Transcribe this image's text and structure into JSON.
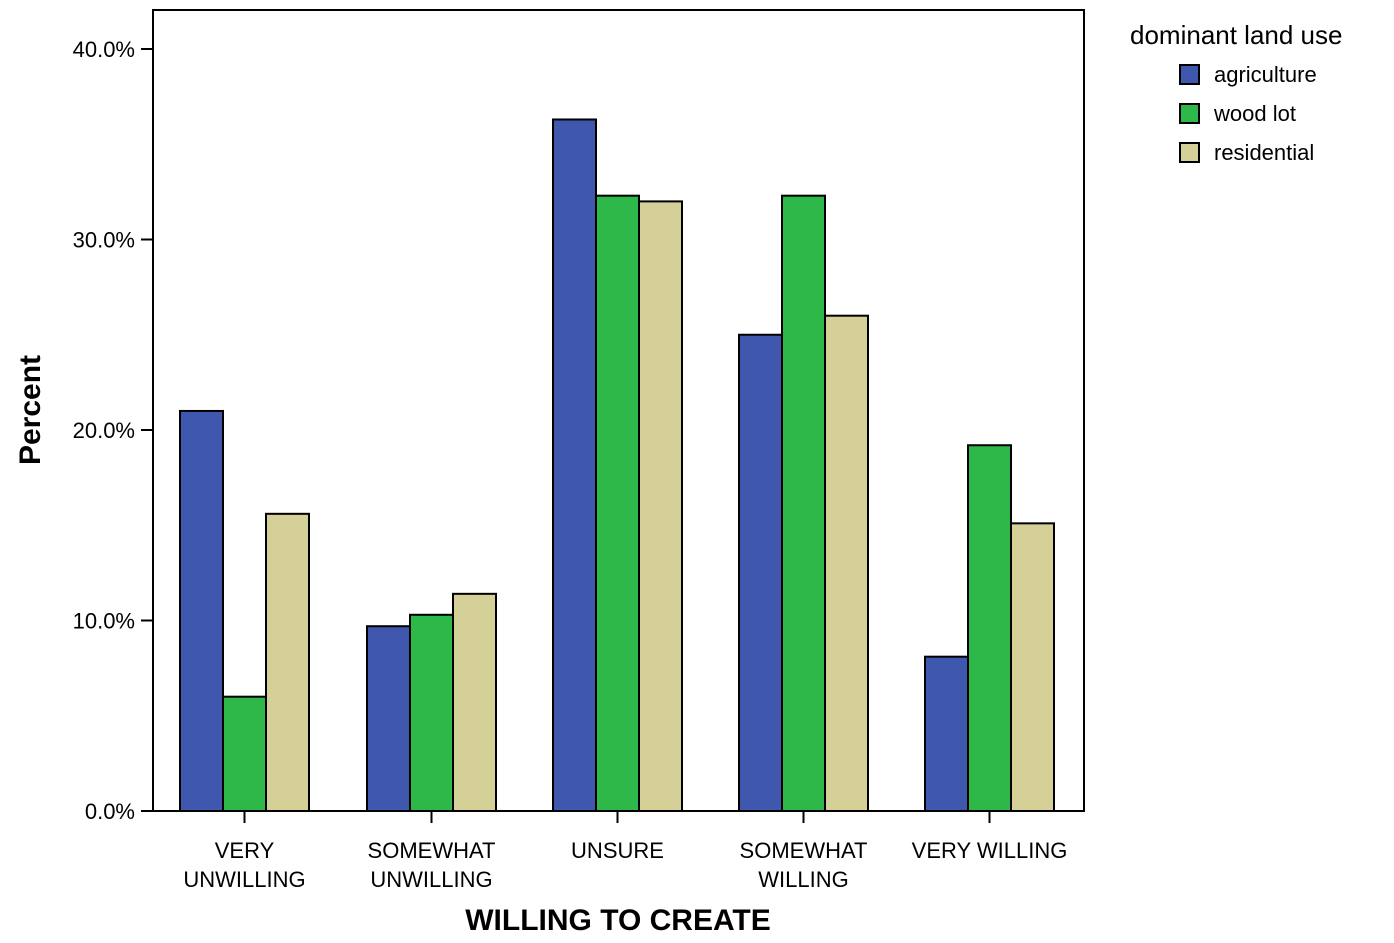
{
  "chart_data": {
    "type": "bar",
    "xlabel": "WILLING TO CREATE",
    "ylabel": "Percent",
    "ylim": [
      0,
      40
    ],
    "yticks": [
      "0.0%",
      "10.0%",
      "20.0%",
      "30.0%",
      "40.0%"
    ],
    "ytick_values": [
      0,
      10,
      20,
      30,
      40
    ],
    "categories": [
      [
        "VERY",
        "UNWILLING"
      ],
      [
        "SOMEWHAT",
        "UNWILLING"
      ],
      [
        "UNSURE"
      ],
      [
        "SOMEWHAT",
        "WILLING"
      ],
      [
        "VERY WILLING"
      ]
    ],
    "legend": {
      "title": "dominant land use",
      "position": "right"
    },
    "grid": false,
    "series": [
      {
        "name": "agriculture",
        "color": "#3f58ad",
        "values": [
          21.0,
          9.7,
          36.3,
          25.0,
          8.1
        ]
      },
      {
        "name": "wood lot",
        "color": "#2eb84a",
        "values": [
          6.0,
          10.3,
          32.3,
          32.3,
          19.2
        ]
      },
      {
        "name": "residential",
        "color": "#d5cf98",
        "values": [
          15.6,
          11.4,
          32.0,
          26.0,
          15.1
        ]
      }
    ]
  }
}
